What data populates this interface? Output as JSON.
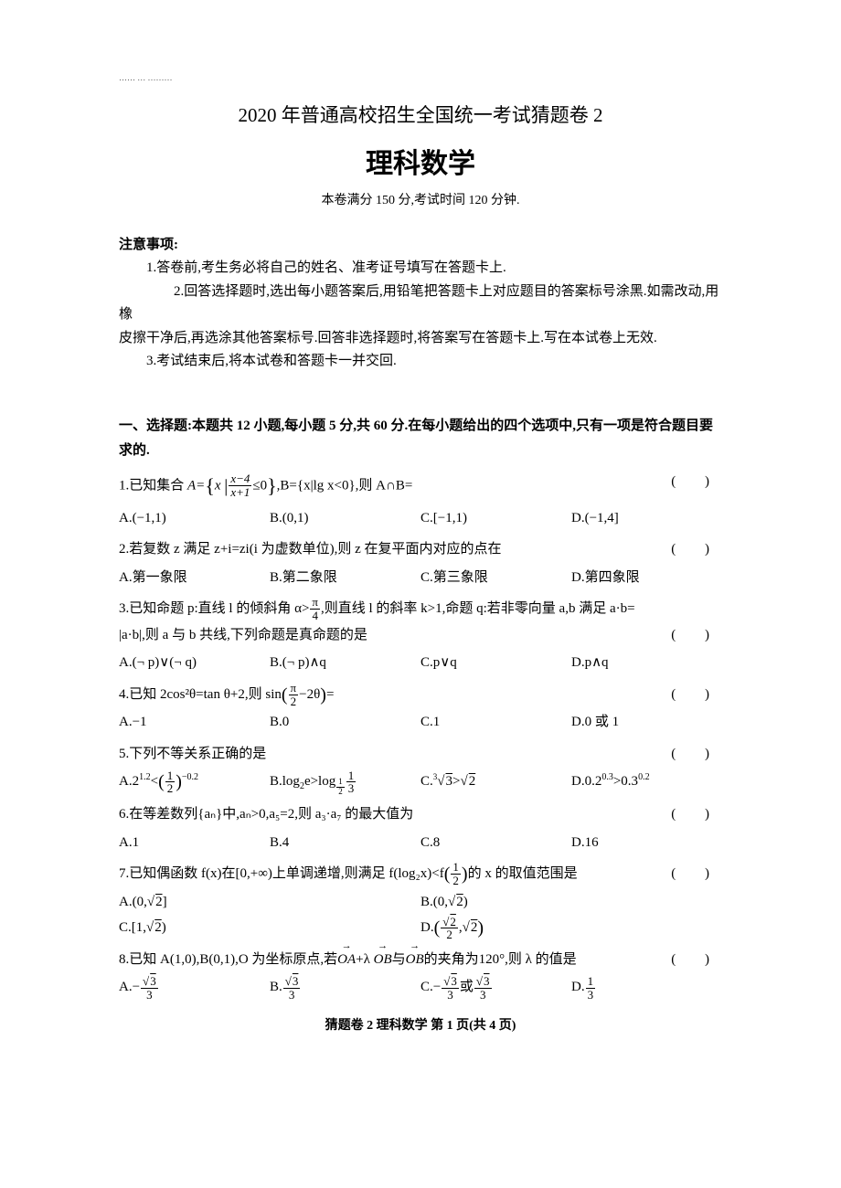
{
  "header": {
    "small_mark": "…… … ………",
    "title_line1": "2020 年普通高校招生全国统一考试猜题卷 2",
    "title_line2": "理科数学",
    "exam_info": "本卷满分 150 分,考试时间 120 分钟."
  },
  "notice": {
    "title": "注意事项:",
    "items": [
      "1.答卷前,考生务必将自己的姓名、准考证号填写在答题卡上.",
      "2.回答选择题时,选出每小题答案后,用铅笔把答题卡上对应题目的答案标号涂黑.如需改动,用橡皮擦干净后,再选涂其他答案标号.回答非选择题时,将答案写在答题卡上.写在本试卷上无效.",
      "3.考试结束后,将本试卷和答题卡一并交回."
    ]
  },
  "section1": {
    "title": "一、选择题:本题共 12 小题,每小题 5 分,共 60 分.在每小题给出的四个选项中,只有一项是符合题目要求的."
  },
  "paren": "( )",
  "q1": {
    "stem_prefix": "1.已知集合 ",
    "stem_mid1": "A=",
    "frac_num": "x−4",
    "frac_den": "x+1",
    "stem_mid2": "≤0",
    "stem_mid3": ",B={x|lg x<0},则 A∩B=",
    "optA": "A.(−1,1)",
    "optB": "B.(0,1)",
    "optC": "C.[−1,1)",
    "optD": "D.(−1,4]"
  },
  "q2": {
    "stem": "2.若复数 z 满足 z+i=zi(i 为虚数单位),则 z 在复平面内对应的点在",
    "optA": "A.第一象限",
    "optB": "B.第二象限",
    "optC": "C.第三象限",
    "optD": "D.第四象限"
  },
  "q3": {
    "stem_p1": "3.已知命题 p:直线 l 的倾斜角 α>",
    "frac_num": "π",
    "frac_den": "4",
    "stem_p2": ",则直线 l 的斜率 k>1,命题 q:若非零向量 a,b 满足 a·b=",
    "stem_line2": "|a·b|,则 a 与 b 共线,下列命题是真命题的是",
    "optA": "A.(¬ p)∨(¬ q)",
    "optB": "B.(¬ p)∧q",
    "optC": "C.p∨q",
    "optD": "D.p∧q"
  },
  "q4": {
    "stem_p1": "4.已知 2cos²θ=tan θ+2,则 sin",
    "frac_num": "π",
    "frac_den": "2",
    "stem_p2": "−2θ",
    "stem_p3": "=",
    "optA": "A.−1",
    "optB": "B.0",
    "optC": "C.1",
    "optD": "D.0 或 1"
  },
  "q5": {
    "stem": "5.下列不等关系正确的是",
    "optA_p1": "A.2",
    "optA_sup1": "1.2",
    "optA_p2": "<",
    "optA_frac_num": "1",
    "optA_frac_den": "2",
    "optA_sup2": "−0.2",
    "optB_p1": "B.log",
    "optB_sub": "2",
    "optB_p2": "e>log",
    "optB_frac_sub_num": "1",
    "optB_frac_sub_den": "2",
    "optB_p3": " ",
    "optB_frac_num": "1",
    "optB_frac_den": "3",
    "optC_p1": "C.",
    "optC_root": "³√3",
    "optC_p2": ">",
    "optC_sqrt": "√2",
    "optD_p1": "D.0.2",
    "optD_sup1": "0.3",
    "optD_p2": ">0.3",
    "optD_sup2": "0.2"
  },
  "q6": {
    "stem": "6.在等差数列{aₙ}中,aₙ>0,a₅=2,则 a₃·a₇ 的最大值为",
    "optA": "A.1",
    "optB": "B.4",
    "optC": "C.8",
    "optD": "D.16"
  },
  "q7": {
    "stem_p1": "7.已知偶函数 f(x)在[0,+∞)上单调递增,则满足 f(log₂x)<f",
    "frac_num": "1",
    "frac_den": "2",
    "stem_p2": "的 x 的取值范围是",
    "optA_p1": "A.(0,",
    "optA_sqrt": "√2",
    "optA_p2": "]",
    "optB_p1": "B.(0,",
    "optB_sqrt": "√2",
    "optB_p2": ")",
    "optC_p1": "C.[1,",
    "optC_sqrt": "√2",
    "optC_p2": ")",
    "optD_p1": "D.",
    "optD_frac_num": "√2",
    "optD_frac_den": "2",
    "optD_p2": ",",
    "optD_sqrt": "√2"
  },
  "q8": {
    "stem_p1": "8.已知 A(1,0),B(0,1),O 为坐标原点,若",
    "stem_vec1": "OA",
    "stem_p2": "+λ",
    "stem_vec2": "OB",
    "stem_p3": "与",
    "stem_vec3": "OB",
    "stem_p4": "的夹角为120°,则 λ 的值是",
    "optA_p1": "A.−",
    "optA_frac_num": "√3",
    "optA_frac_den": "3",
    "optB_p1": "B.",
    "optB_frac_num": "√3",
    "optB_frac_den": "3",
    "optC_p1": "C.−",
    "optC_frac_num": "√3",
    "optC_frac_den": "3",
    "optC_p2": "或",
    "optC_frac2_num": "√3",
    "optC_frac2_den": "3",
    "optD_p1": "D.",
    "optD_frac_num": "1",
    "optD_frac_den": "3"
  },
  "footer": "猜题卷 2   理科数学   第 1 页(共 4 页)"
}
